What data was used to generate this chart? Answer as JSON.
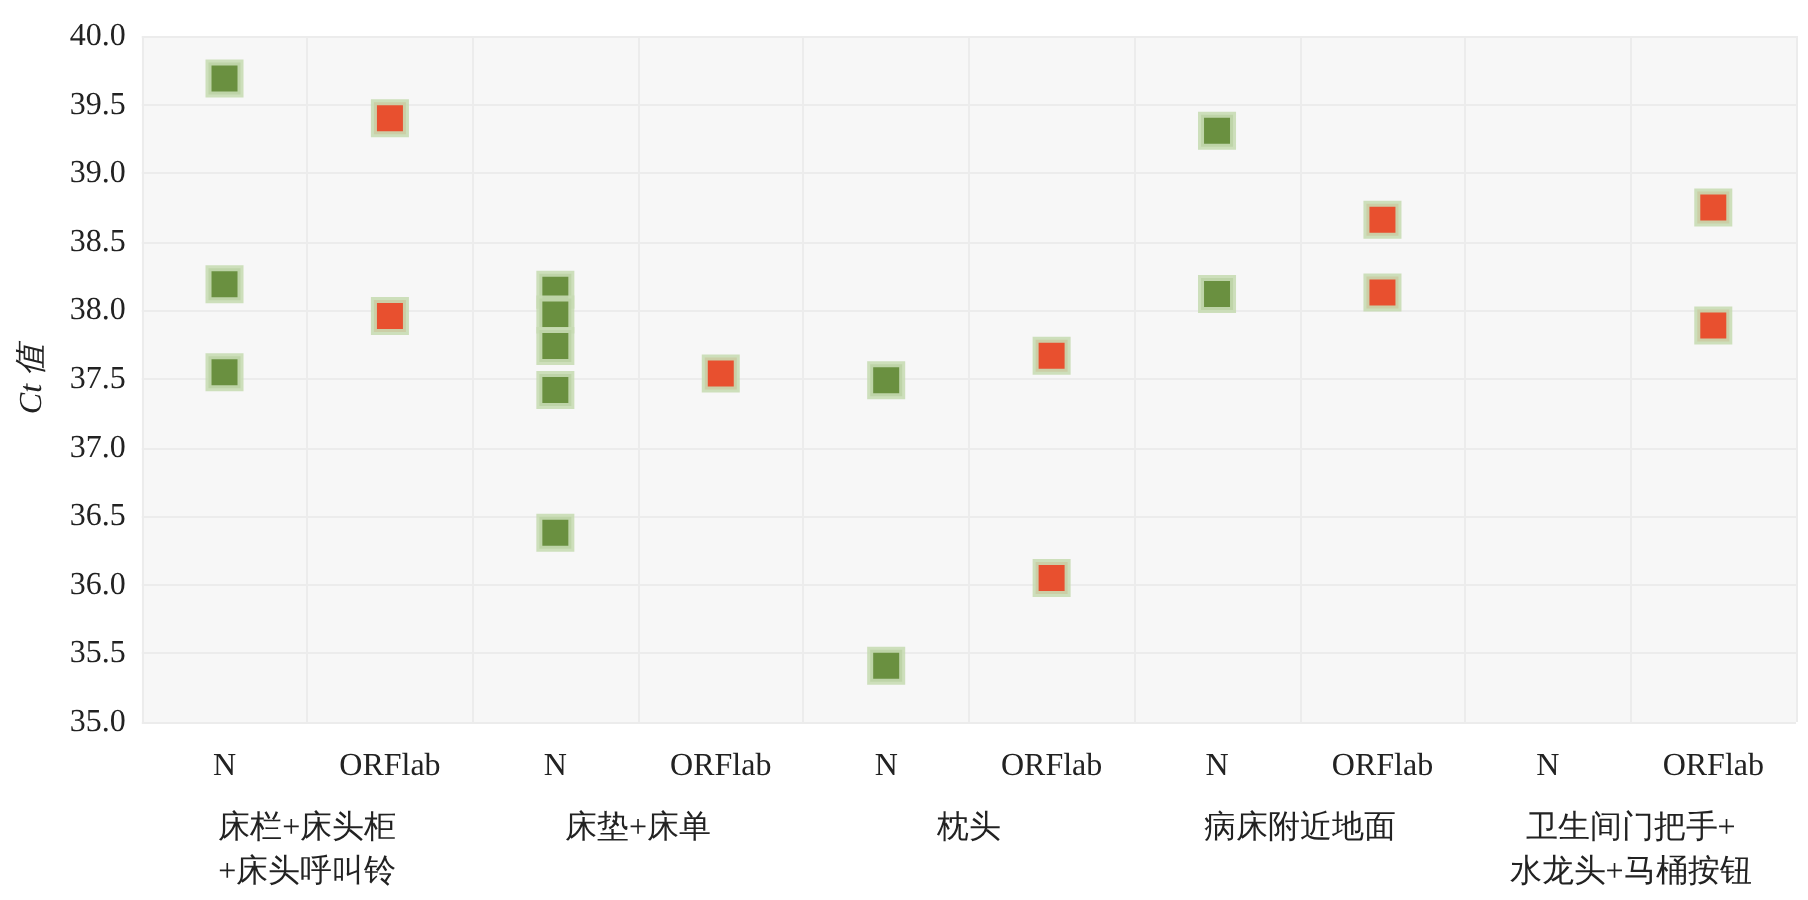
{
  "chart_data": {
    "type": "scatter",
    "ylabel": "Ct 值",
    "categories": [
      "N",
      "ORFlab",
      "N",
      "ORFlab",
      "N",
      "ORFlab",
      "N",
      "ORFlab",
      "N",
      "ORFlab"
    ],
    "series": [
      {
        "values": [
          39.69,
          39.4,
          38.15,
          37.54,
          37.49,
          37.67,
          39.31,
          38.66,
          null,
          38.75
        ],
        "colors": [
          "#6a9040",
          "#e8502f",
          "#6a9040",
          "#e8502f",
          "#6a9040",
          "#e8502f",
          "#6a9040",
          "#e8502f",
          null,
          "#e8502f"
        ]
      },
      {
        "values": [
          38.19,
          37.96,
          37.97,
          null,
          35.41,
          36.05,
          38.12,
          38.13,
          null,
          37.89
        ],
        "colors": [
          "#6a9040",
          "#e8502f",
          "#6a9040",
          null,
          "#6a9040",
          "#e8502f",
          "#6a9040",
          "#e8502f",
          null,
          "#e8502f"
        ]
      },
      {
        "values": [
          37.55,
          null,
          37.74,
          null,
          null,
          null,
          null,
          null,
          null,
          null
        ],
        "colors": [
          "#6a9040",
          null,
          "#6a9040",
          null,
          null,
          null,
          null,
          null,
          null,
          null
        ]
      },
      {
        "values": [
          null,
          null,
          37.42,
          null,
          null,
          null,
          null,
          null,
          null,
          null
        ],
        "colors": [
          null,
          null,
          "#6a9040",
          null,
          null,
          null,
          null,
          null,
          null,
          null
        ]
      },
      {
        "values": [
          null,
          null,
          36.38,
          null,
          null,
          null,
          null,
          null,
          null,
          null
        ],
        "colors": [
          null,
          null,
          "#6a9040",
          null,
          null,
          null,
          null,
          null,
          null,
          null
        ]
      }
    ],
    "ylim": [
      35,
      40
    ],
    "yticks": [
      {
        "value": 35,
        "label": "35.0"
      },
      35.5,
      {
        "value": 36,
        "label": "36.0"
      },
      36.5,
      {
        "value": 37,
        "label": "37.0"
      },
      37.5,
      {
        "value": 38,
        "label": "38.0"
      },
      38.5,
      {
        "value": 39,
        "label": "39.0"
      },
      39.5,
      {
        "value": 40,
        "label": "40.0"
      }
    ],
    "annotations": [
      "床栏+床头柜\n+床头呼叫铃",
      "床垫+床单",
      "枕头",
      "病床附近地面",
      "卫生间门把手+\n水龙头+马桶按钮"
    ],
    "grid": true,
    "marker": "square"
  }
}
